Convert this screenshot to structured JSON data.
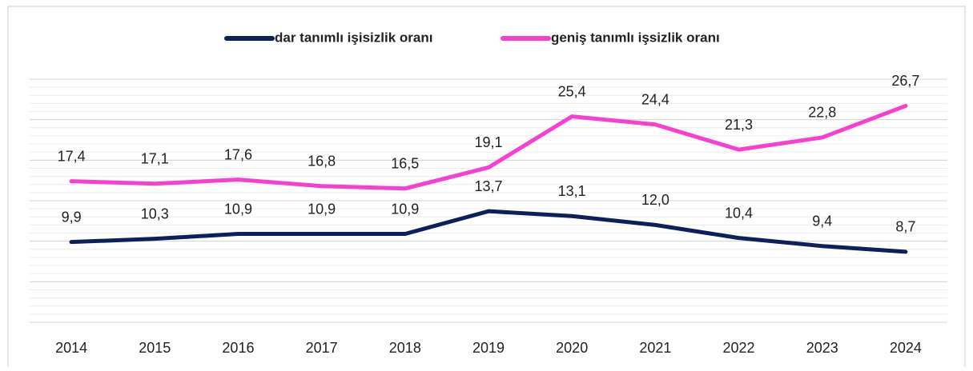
{
  "chart_data": {
    "type": "line",
    "categories": [
      "2014",
      "2015",
      "2016",
      "2017",
      "2018",
      "2019",
      "2020",
      "2021",
      "2022",
      "2023",
      "2024"
    ],
    "series": [
      {
        "name": "dar tanımlı işisizlik oranı",
        "color": "#0e1f5b",
        "values": [
          9.9,
          10.3,
          10.9,
          10.9,
          10.9,
          13.7,
          13.1,
          12.0,
          10.4,
          9.4,
          8.7
        ],
        "value_labels": [
          "9,9",
          "10,3",
          "10,9",
          "10,9",
          "10,9",
          "13,7",
          "13,1",
          "12,0",
          "10,4",
          "9,4",
          "8,7"
        ]
      },
      {
        "name": "geniş tanımlı işsizlik oranı",
        "color": "#f73fd2",
        "values": [
          17.4,
          17.1,
          17.6,
          16.8,
          16.5,
          19.1,
          25.4,
          24.4,
          21.3,
          22.8,
          26.7
        ],
        "value_labels": [
          "17,4",
          "17,1",
          "17,6",
          "16,8",
          "16,5",
          "19,1",
          "25,4",
          "24,4",
          "21,3",
          "22,8",
          "26,7"
        ]
      }
    ],
    "ylim": [
      0,
      30
    ],
    "yticks": [
      0,
      5,
      10,
      15,
      20,
      25,
      30
    ],
    "grid": true,
    "legend": "top"
  }
}
